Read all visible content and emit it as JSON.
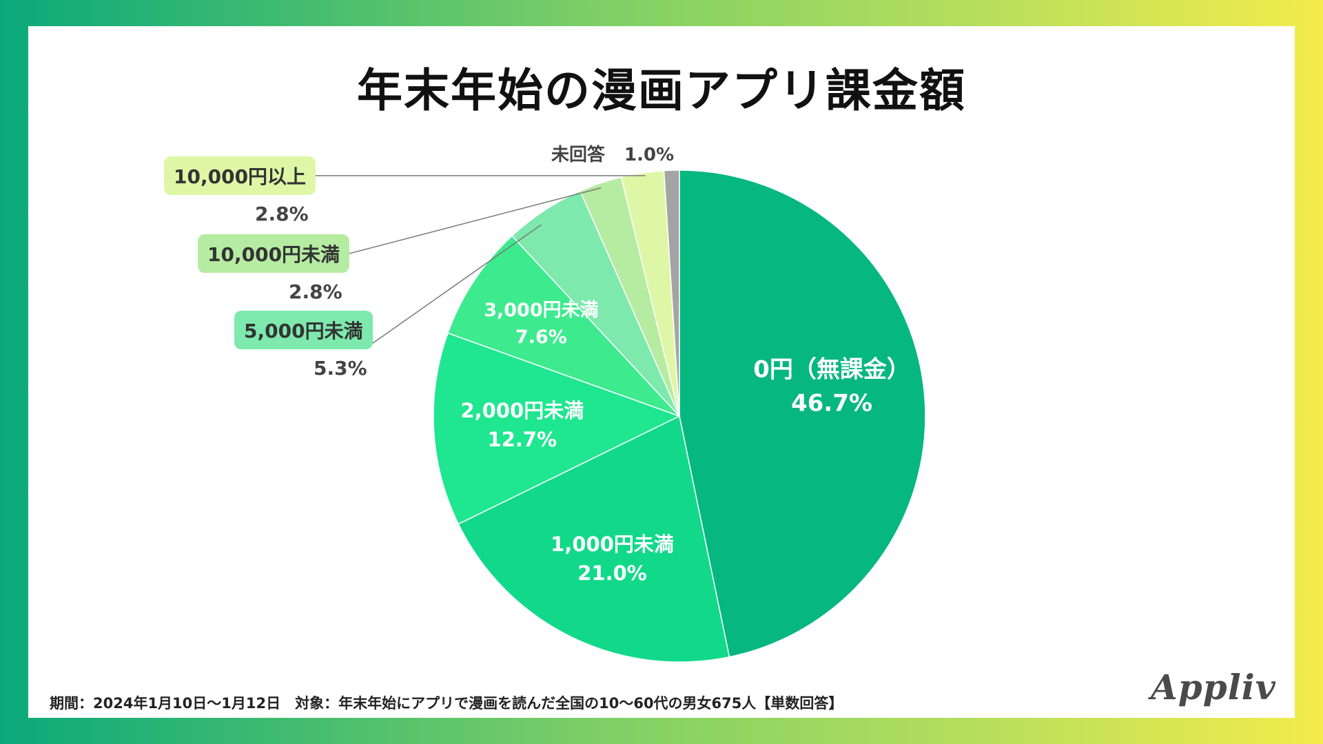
{
  "chart_data": {
    "type": "pie",
    "title": "年末年始の漫画アプリ課金額",
    "start_angle": "12 o'clock",
    "direction": "clockwise",
    "slices": [
      {
        "label": "0円（無課金）",
        "value": 46.7,
        "pct_text": "46.7%",
        "color": "#06b780"
      },
      {
        "label": "1,000円未満",
        "value": 21.0,
        "pct_text": "21.0%",
        "color": "#12d98a"
      },
      {
        "label": "2,000円未満",
        "value": 12.7,
        "pct_text": "12.7%",
        "color": "#1fe690"
      },
      {
        "label": "3,000円未満",
        "value": 7.6,
        "pct_text": "7.6%",
        "color": "#3deb8e"
      },
      {
        "label": "5,000円未満",
        "value": 5.3,
        "pct_text": "5.3%",
        "color": "#7de9ad",
        "callout_bg": "#7de9ad"
      },
      {
        "label": "10,000円未満",
        "value": 2.8,
        "pct_text": "2.8%",
        "color": "#b6eca2",
        "callout_bg": "#b6eca2"
      },
      {
        "label": "10,000円以上",
        "value": 2.8,
        "pct_text": "2.8%",
        "color": "#def7a6",
        "callout_bg": "#def7a6"
      },
      {
        "label": "未回答",
        "value": 1.0,
        "pct_text": "1.0%",
        "color": "#a4a4a4"
      }
    ]
  },
  "footer": {
    "note": "期間：2024年1月10日〜1月12日　対象：年末年始にアプリで漫画を読んだ全国の10〜60代の男女675人【単数回答】"
  },
  "brand": {
    "name": "Appliv"
  },
  "colors": {
    "leader_line": "#777777",
    "label_text_dark": "#444444"
  }
}
